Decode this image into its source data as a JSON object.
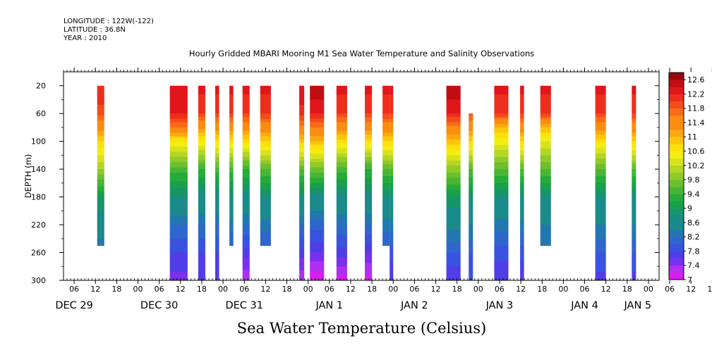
{
  "header": {
    "longitude": "LONGITUDE : 122W(-122)",
    "latitude": "LATITUDE : 36.8N",
    "year": "YEAR : 2010",
    "title": "Hourly Gridded MBARI Mooring M1 Sea Water Temperature and Salinity Observations"
  },
  "bottom_title": "Sea Water Temperature (Celsius)",
  "chart_data": {
    "type": "heatmap",
    "title": "Hourly Gridded MBARI Mooring M1 Sea Water Temperature and Salinity Observations",
    "ylabel": "DEPTH (m)",
    "xlabel": "",
    "x_unit": "hours since 2010-12-29 00:00",
    "xlim": [
      3,
      171
    ],
    "ylim": [
      300,
      0
    ],
    "y_ticks": [
      20,
      60,
      100,
      140,
      180,
      220,
      260,
      300
    ],
    "x_tick_labels": [
      "06",
      "12",
      "18",
      "00",
      "06",
      "12",
      "18",
      "00",
      "06",
      "12",
      "18",
      "00",
      "06",
      "12",
      "18",
      "00",
      "06",
      "12",
      "18",
      "00",
      "06",
      "12",
      "18",
      "00",
      "06",
      "12",
      "18",
      "00",
      "06",
      "12",
      "18",
      "00",
      "06"
    ],
    "day_labels": [
      {
        "label": "DEC 29",
        "hour": 6
      },
      {
        "label": "DEC 30",
        "hour": 30
      },
      {
        "label": "DEC 31",
        "hour": 54
      },
      {
        "label": "JAN  1",
        "hour": 78
      },
      {
        "label": "JAN  2",
        "hour": 102
      },
      {
        "label": "JAN  3",
        "hour": 126
      },
      {
        "label": "JAN  4",
        "hour": 150
      },
      {
        "label": "JAN  5",
        "hour": 165
      }
    ],
    "colorbar": {
      "labels": [
        "12.6",
        "12.2",
        "11.8",
        "11.4",
        "11",
        "10.6",
        "10.2",
        "9.8",
        "9.4",
        "9",
        "8.6",
        "8.2",
        "7.8",
        "7.4",
        "7"
      ],
      "min": 7.0,
      "max": 12.8,
      "step": 0.2
    },
    "columns": [
      {
        "x0": 12.5,
        "x1": 14.5,
        "bottom": 250,
        "profile": [
          [
            20,
            12.2
          ],
          [
            60,
            11.9
          ],
          [
            100,
            10.8
          ],
          [
            140,
            10.0
          ],
          [
            180,
            9.0
          ],
          [
            220,
            8.6
          ],
          [
            250,
            8.3
          ]
        ]
      },
      {
        "x0": 33,
        "x1": 38,
        "bottom": 300,
        "profile": [
          [
            20,
            12.4
          ],
          [
            60,
            12.2
          ],
          [
            80,
            11.6
          ],
          [
            100,
            10.6
          ],
          [
            140,
            9.5
          ],
          [
            180,
            8.8
          ],
          [
            220,
            8.2
          ],
          [
            260,
            7.8
          ],
          [
            300,
            7.5
          ]
        ]
      },
      {
        "x0": 41,
        "x1": 43,
        "bottom": 300,
        "profile": [
          [
            20,
            12.3
          ],
          [
            60,
            12.0
          ],
          [
            90,
            10.9
          ],
          [
            140,
            9.4
          ],
          [
            180,
            8.7
          ],
          [
            220,
            8.2
          ],
          [
            260,
            7.8
          ],
          [
            300,
            7.6
          ]
        ]
      },
      {
        "x0": 45.8,
        "x1": 46.9,
        "bottom": 300,
        "profile": [
          [
            20,
            12.3
          ],
          [
            60,
            12.0
          ],
          [
            100,
            10.7
          ],
          [
            140,
            9.5
          ],
          [
            180,
            8.7
          ],
          [
            220,
            8.2
          ],
          [
            260,
            7.8
          ],
          [
            300,
            7.6
          ]
        ]
      },
      {
        "x0": 49.8,
        "x1": 50.9,
        "bottom": 250,
        "profile": [
          [
            20,
            12.3
          ],
          [
            60,
            12.0
          ],
          [
            100,
            10.7
          ],
          [
            140,
            9.5
          ],
          [
            180,
            8.8
          ],
          [
            220,
            8.3
          ],
          [
            250,
            8.0
          ]
        ]
      },
      {
        "x0": 53.5,
        "x1": 55.5,
        "bottom": 300,
        "profile": [
          [
            20,
            12.3
          ],
          [
            60,
            12.0
          ],
          [
            100,
            10.7
          ],
          [
            140,
            9.4
          ],
          [
            180,
            8.7
          ],
          [
            220,
            8.2
          ],
          [
            260,
            7.7
          ],
          [
            300,
            7.2
          ]
        ]
      },
      {
        "x0": 58.5,
        "x1": 61.5,
        "bottom": 250,
        "profile": [
          [
            20,
            12.3
          ],
          [
            60,
            12.0
          ],
          [
            100,
            10.8
          ],
          [
            140,
            9.6
          ],
          [
            180,
            8.8
          ],
          [
            220,
            8.3
          ],
          [
            250,
            8.0
          ]
        ]
      },
      {
        "x0": 69.5,
        "x1": 70.9,
        "bottom": 300,
        "profile": [
          [
            20,
            12.4
          ],
          [
            60,
            12.1
          ],
          [
            100,
            10.9
          ],
          [
            140,
            9.6
          ],
          [
            180,
            8.8
          ],
          [
            220,
            8.2
          ],
          [
            260,
            7.7
          ],
          [
            300,
            7.2
          ]
        ]
      },
      {
        "x0": 72.5,
        "x1": 76.5,
        "bottom": 300,
        "profile": [
          [
            20,
            12.6
          ],
          [
            60,
            12.2
          ],
          [
            100,
            11.0
          ],
          [
            140,
            9.7
          ],
          [
            180,
            8.7
          ],
          [
            220,
            8.1
          ],
          [
            260,
            7.6
          ],
          [
            300,
            7.0
          ]
        ]
      },
      {
        "x0": 80,
        "x1": 83,
        "bottom": 300,
        "profile": [
          [
            20,
            12.3
          ],
          [
            60,
            12.0
          ],
          [
            100,
            10.7
          ],
          [
            140,
            9.5
          ],
          [
            180,
            8.7
          ],
          [
            220,
            8.2
          ],
          [
            260,
            7.7
          ],
          [
            300,
            7.1
          ]
        ]
      },
      {
        "x0": 88,
        "x1": 90,
        "bottom": 300,
        "profile": [
          [
            20,
            12.3
          ],
          [
            60,
            12.0
          ],
          [
            90,
            11.0
          ],
          [
            140,
            9.4
          ],
          [
            180,
            8.7
          ],
          [
            220,
            8.2
          ],
          [
            260,
            7.6
          ],
          [
            300,
            7.1
          ]
        ]
      },
      {
        "x0": 93,
        "x1": 95,
        "bottom": 250,
        "profile": [
          [
            20,
            12.3
          ],
          [
            60,
            12.0
          ],
          [
            100,
            10.8
          ],
          [
            140,
            9.6
          ],
          [
            180,
            8.8
          ],
          [
            220,
            8.3
          ],
          [
            250,
            8.0
          ]
        ]
      },
      {
        "x0": 95,
        "x1": 96,
        "bottom": 300,
        "profile": [
          [
            20,
            12.3
          ],
          [
            60,
            12.0
          ],
          [
            100,
            10.8
          ],
          [
            140,
            9.6
          ],
          [
            180,
            8.8
          ],
          [
            220,
            8.3
          ],
          [
            260,
            7.9
          ],
          [
            300,
            7.6
          ]
        ]
      },
      {
        "x0": 111,
        "x1": 115,
        "bottom": 300,
        "profile": [
          [
            20,
            12.6
          ],
          [
            60,
            12.2
          ],
          [
            100,
            10.9
          ],
          [
            140,
            9.9
          ],
          [
            180,
            9.0
          ],
          [
            220,
            8.5
          ],
          [
            260,
            8.0
          ],
          [
            300,
            7.6
          ]
        ]
      },
      {
        "x0": 117.3,
        "x1": 118.5,
        "top": 60,
        "bottom": 300,
        "profile": [
          [
            60,
            11.9
          ],
          [
            100,
            10.8
          ],
          [
            140,
            9.6
          ],
          [
            180,
            8.9
          ],
          [
            220,
            8.4
          ],
          [
            260,
            8.0
          ],
          [
            300,
            7.8
          ]
        ]
      },
      {
        "x0": 124.5,
        "x1": 128.5,
        "bottom": 300,
        "profile": [
          [
            20,
            12.3
          ],
          [
            60,
            12.0
          ],
          [
            80,
            11.0
          ],
          [
            100,
            10.5
          ],
          [
            140,
            9.6
          ],
          [
            180,
            8.8
          ],
          [
            220,
            8.3
          ],
          [
            260,
            7.9
          ],
          [
            300,
            7.6
          ]
        ]
      },
      {
        "x0": 131.8,
        "x1": 132.9,
        "bottom": 300,
        "profile": [
          [
            20,
            12.3
          ],
          [
            60,
            12.0
          ],
          [
            100,
            10.8
          ],
          [
            140,
            9.6
          ],
          [
            180,
            8.8
          ],
          [
            220,
            8.3
          ],
          [
            260,
            7.9
          ],
          [
            300,
            7.6
          ]
        ]
      },
      {
        "x0": 137.5,
        "x1": 140.5,
        "bottom": 250,
        "profile": [
          [
            20,
            12.3
          ],
          [
            60,
            12.0
          ],
          [
            80,
            11.0
          ],
          [
            100,
            10.4
          ],
          [
            140,
            9.6
          ],
          [
            180,
            8.8
          ],
          [
            220,
            8.4
          ],
          [
            250,
            8.2
          ]
        ]
      },
      {
        "x0": 153,
        "x1": 156,
        "bottom": 300,
        "profile": [
          [
            20,
            12.3
          ],
          [
            60,
            12.0
          ],
          [
            100,
            10.7
          ],
          [
            140,
            9.6
          ],
          [
            180,
            8.8
          ],
          [
            220,
            8.4
          ],
          [
            260,
            8.0
          ],
          [
            300,
            7.7
          ]
        ]
      },
      {
        "x0": 163.3,
        "x1": 164.5,
        "bottom": 300,
        "profile": [
          [
            20,
            12.3
          ],
          [
            60,
            12.0
          ],
          [
            100,
            10.8
          ],
          [
            140,
            9.6
          ],
          [
            180,
            8.8
          ],
          [
            220,
            8.4
          ],
          [
            260,
            8.0
          ],
          [
            300,
            7.7
          ]
        ]
      }
    ]
  }
}
